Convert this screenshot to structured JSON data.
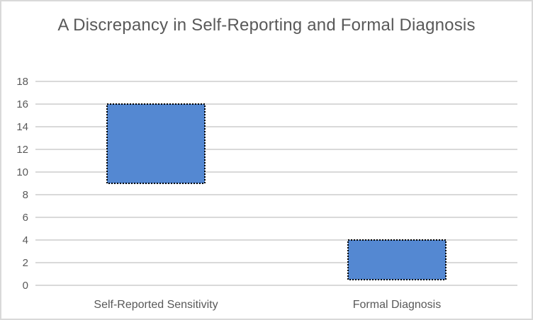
{
  "chart_data": {
    "type": "bar",
    "subtype": "floating-range-bar",
    "title": "A Discrepancy in Self-Reporting and Formal Diagnosis",
    "categories": [
      "Self-Reported Sensitivity",
      "Formal Diagnosis"
    ],
    "series": [
      {
        "values": [
          {
            "low": 9,
            "high": 16
          },
          {
            "low": 0.5,
            "high": 4
          }
        ]
      }
    ],
    "y_axis": {
      "min": 0,
      "max": 18,
      "tick_step": 2,
      "tick_labels": [
        "0",
        "2",
        "4",
        "6",
        "8",
        "10",
        "12",
        "14",
        "16",
        "18"
      ]
    },
    "grid": "horizontal",
    "legend": "none",
    "colors": {
      "bar_fill": "#5488D2",
      "bar_border": "#000000",
      "gridline": "#D9D9D9",
      "axis_text": "#595959",
      "title_text": "#595959",
      "chart_border": "#D9D9D9",
      "background": "#FFFFFF"
    }
  }
}
